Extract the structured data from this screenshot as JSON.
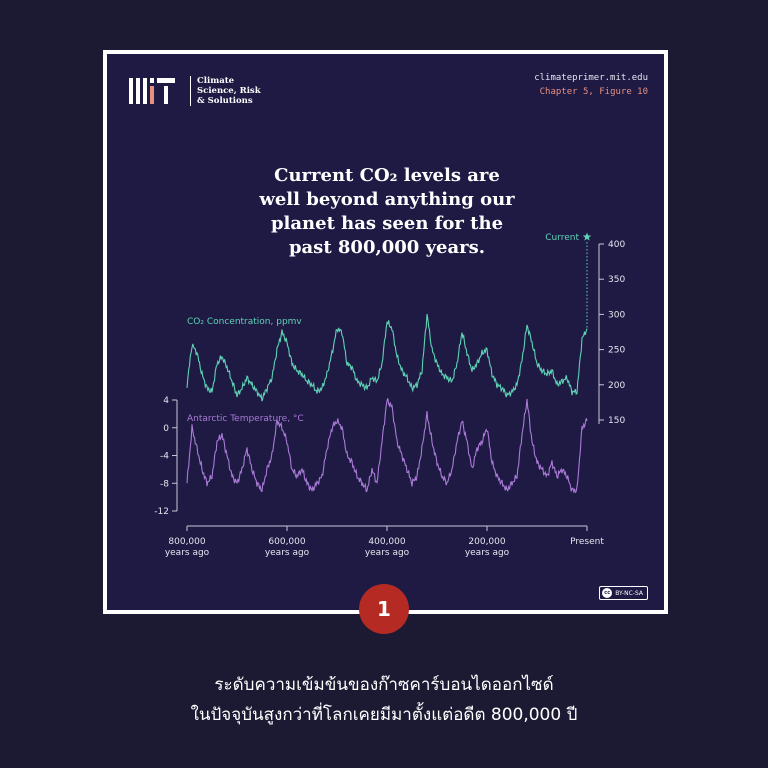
{
  "header": {
    "logo_text": "Climate Science, Risk & Solutions",
    "logo_lines": [
      "Climate",
      "Science, Risk",
      "& Solutions"
    ],
    "url": "climateprimer.mit.edu",
    "figure_ref": "Chapter 5, Figure 10"
  },
  "headline": [
    "Current CO₂ levels are",
    "well beyond anything our",
    "planet has seen for the",
    "past 800,000 years."
  ],
  "license": "BY-NC-SA",
  "badge": "1",
  "caption": [
    "ระดับความเข้มข้นของก๊าซคาร์บอนไดออกไซด์",
    "ในปัจจุบันสูงกว่าที่โลกเคยมีมาตั้งแต่อดีต 800,000 ปี"
  ],
  "colors": {
    "co2": "#5fd3b5",
    "temperature": "#a97bd6",
    "accent": "#e89080",
    "badge": "#b52b24"
  },
  "chart_data": [
    {
      "type": "line",
      "title": "CO₂ Concentration, ppmv",
      "current_label": "Current",
      "x_unit": "years ago",
      "x": [
        800000,
        790000,
        780000,
        770000,
        760000,
        750000,
        740000,
        730000,
        720000,
        710000,
        700000,
        690000,
        680000,
        670000,
        660000,
        650000,
        640000,
        630000,
        620000,
        610000,
        600000,
        590000,
        580000,
        570000,
        560000,
        550000,
        540000,
        530000,
        520000,
        510000,
        500000,
        490000,
        480000,
        470000,
        460000,
        450000,
        440000,
        430000,
        420000,
        410000,
        400000,
        390000,
        380000,
        370000,
        360000,
        350000,
        340000,
        330000,
        320000,
        310000,
        300000,
        290000,
        280000,
        270000,
        260000,
        250000,
        240000,
        230000,
        220000,
        210000,
        200000,
        190000,
        180000,
        170000,
        160000,
        150000,
        140000,
        130000,
        120000,
        110000,
        100000,
        90000,
        80000,
        70000,
        60000,
        50000,
        40000,
        30000,
        20000,
        10000,
        0
      ],
      "values": [
        200,
        257,
        245,
        215,
        195,
        190,
        230,
        240,
        225,
        205,
        185,
        195,
        210,
        200,
        190,
        180,
        195,
        210,
        250,
        275,
        260,
        230,
        220,
        215,
        205,
        200,
        190,
        195,
        215,
        245,
        280,
        275,
        230,
        225,
        205,
        200,
        195,
        210,
        205,
        230,
        290,
        280,
        240,
        220,
        210,
        195,
        200,
        220,
        300,
        250,
        230,
        215,
        210,
        205,
        230,
        275,
        245,
        220,
        230,
        245,
        250,
        215,
        200,
        195,
        185,
        190,
        200,
        235,
        285,
        260,
        230,
        220,
        215,
        220,
        200,
        205,
        210,
        190,
        190,
        265,
        280
      ],
      "current_value": 410,
      "yticks": [
        150,
        200,
        250,
        300,
        350,
        400
      ],
      "ylim": [
        150,
        400
      ]
    },
    {
      "type": "line",
      "title": "Antarctic Temperature, °C",
      "x_unit": "years ago",
      "x": [
        800000,
        790000,
        780000,
        770000,
        760000,
        750000,
        740000,
        730000,
        720000,
        710000,
        700000,
        690000,
        680000,
        670000,
        660000,
        650000,
        640000,
        630000,
        620000,
        610000,
        600000,
        590000,
        580000,
        570000,
        560000,
        550000,
        540000,
        530000,
        520000,
        510000,
        500000,
        490000,
        480000,
        470000,
        460000,
        450000,
        440000,
        430000,
        420000,
        410000,
        400000,
        390000,
        380000,
        370000,
        360000,
        350000,
        340000,
        330000,
        320000,
        310000,
        300000,
        290000,
        280000,
        270000,
        260000,
        250000,
        240000,
        230000,
        220000,
        210000,
        200000,
        190000,
        180000,
        170000,
        160000,
        150000,
        140000,
        130000,
        120000,
        110000,
        100000,
        90000,
        80000,
        70000,
        60000,
        50000,
        40000,
        30000,
        20000,
        10000,
        0
      ],
      "values": [
        -8,
        0,
        -3,
        -6,
        -8,
        -7,
        -2,
        -1,
        -4,
        -7,
        -8,
        -6,
        -3,
        -6,
        -8,
        -9,
        -6,
        -4,
        1,
        0,
        -2,
        -6,
        -7,
        -6,
        -8,
        -9,
        -8,
        -7,
        -3,
        0,
        1,
        0,
        -4,
        -5,
        -7,
        -8,
        -9,
        -6,
        -8,
        -2,
        4,
        3,
        -2,
        -4,
        -6,
        -8,
        -7,
        -3,
        2,
        -2,
        -5,
        -7,
        -8,
        -6,
        -2,
        1,
        -2,
        -6,
        -3,
        -2,
        0,
        -5,
        -7,
        -8,
        -9,
        -8,
        -7,
        -1,
        4,
        -2,
        -5,
        -6,
        -7,
        -5,
        -7,
        -6,
        -7,
        -9,
        -9,
        0,
        1
      ],
      "yticks": [
        -12,
        -8,
        -4,
        0,
        4
      ],
      "ylim": [
        -12,
        4
      ]
    }
  ],
  "x_axis": {
    "ticks": [
      {
        "value": 800000,
        "line1": "800,000",
        "line2": "years ago"
      },
      {
        "value": 600000,
        "line1": "600,000",
        "line2": "years ago"
      },
      {
        "value": 400000,
        "line1": "400,000",
        "line2": "years ago"
      },
      {
        "value": 200000,
        "line1": "200,000",
        "line2": "years ago"
      },
      {
        "value": 0,
        "line1": "Present",
        "line2": ""
      }
    ]
  }
}
